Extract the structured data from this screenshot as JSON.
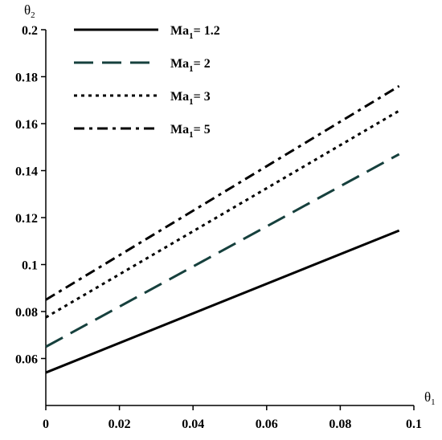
{
  "chart_data": {
    "type": "line",
    "xlabel": {
      "main": "θ",
      "sub": "1"
    },
    "ylabel": {
      "main": "θ",
      "sub": "2"
    },
    "xlim": [
      0,
      0.1
    ],
    "ylim": [
      0.04,
      0.2
    ],
    "xticks": [
      {
        "value": 0,
        "label": "0"
      },
      {
        "value": 0.02,
        "label": "0.02"
      },
      {
        "value": 0.04,
        "label": "0.04"
      },
      {
        "value": 0.06,
        "label": "0.06"
      },
      {
        "value": 0.08,
        "label": "0.08"
      },
      {
        "value": 0.1,
        "label": "0.1"
      }
    ],
    "yticks": [
      {
        "value": 0.06,
        "label": "0.06"
      },
      {
        "value": 0.08,
        "label": "0.08"
      },
      {
        "value": 0.1,
        "label": "0.1"
      },
      {
        "value": 0.12,
        "label": "0.12"
      },
      {
        "value": 0.14,
        "label": "0.14"
      },
      {
        "value": 0.16,
        "label": "0.16"
      },
      {
        "value": 0.18,
        "label": "0.18"
      },
      {
        "value": 0.2,
        "label": "0.2"
      }
    ],
    "grid": false,
    "legend_position": "top-left",
    "series": [
      {
        "name": "Ma",
        "name_sub": "1",
        "name_suffix": "= 1.2",
        "style": "solid",
        "color": "#000000",
        "x": [
          0,
          0.096
        ],
        "y": [
          0.054,
          0.1145
        ]
      },
      {
        "name": "Ma",
        "name_sub": "1",
        "name_suffix": "= 2",
        "style": "dashed",
        "color": "#16403d",
        "x": [
          0,
          0.096
        ],
        "y": [
          0.065,
          0.147
        ]
      },
      {
        "name": "Ma",
        "name_sub": "1",
        "name_suffix": "= 3",
        "style": "dotted",
        "color": "#000000",
        "x": [
          0,
          0.096
        ],
        "y": [
          0.0775,
          0.1655
        ]
      },
      {
        "name": "Ma",
        "name_sub": "1",
        "name_suffix": "= 5",
        "style": "dashdot",
        "color": "#000000",
        "x": [
          0,
          0.096
        ],
        "y": [
          0.085,
          0.176
        ]
      }
    ]
  }
}
